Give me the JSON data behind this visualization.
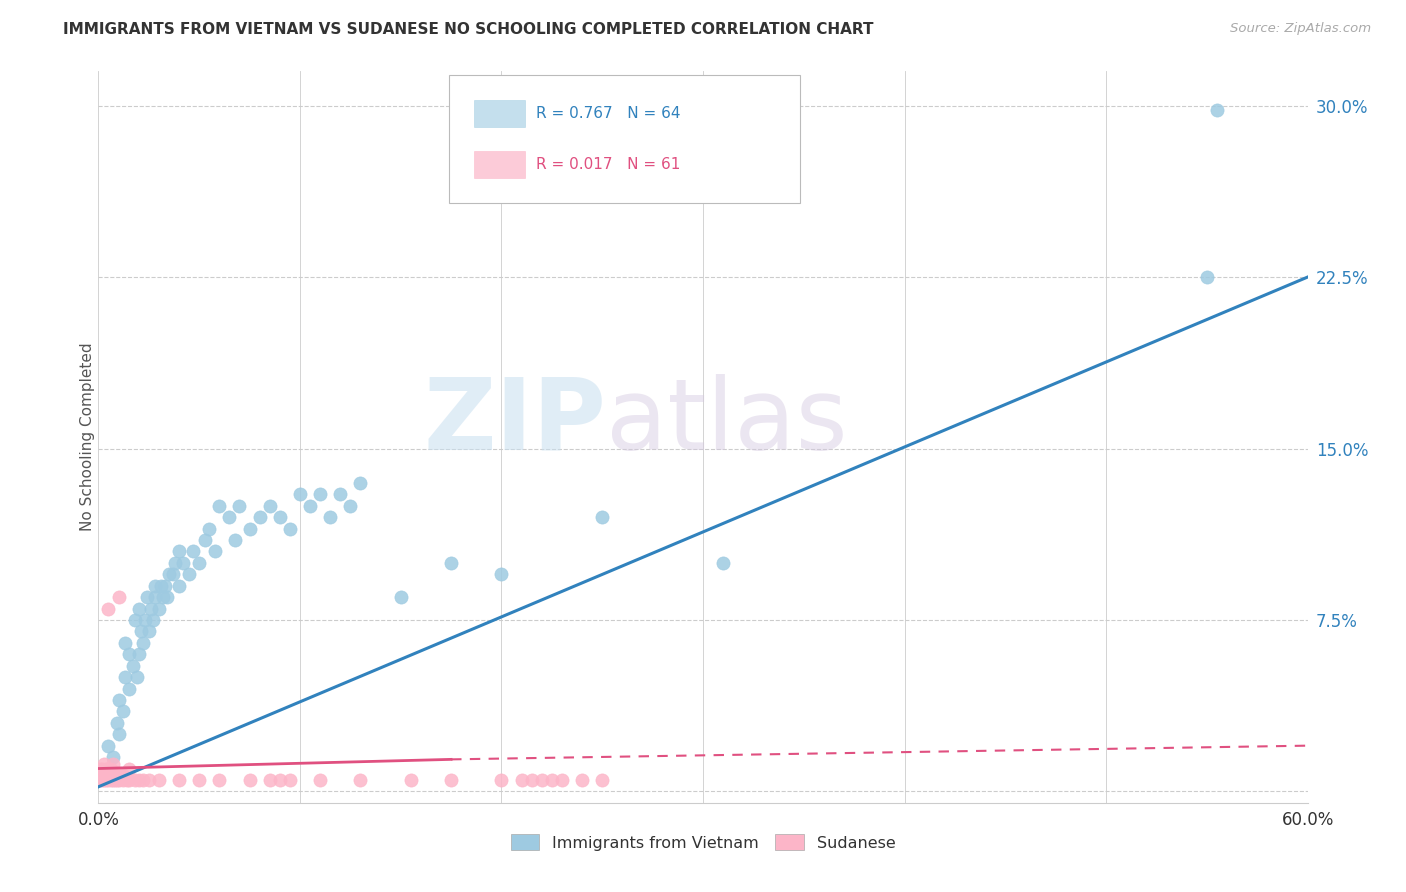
{
  "title": "IMMIGRANTS FROM VIETNAM VS SUDANESE NO SCHOOLING COMPLETED CORRELATION CHART",
  "source": "Source: ZipAtlas.com",
  "ylabel": "No Schooling Completed",
  "xlim": [
    0.0,
    0.6
  ],
  "ylim": [
    -0.005,
    0.315
  ],
  "xticks": [
    0.0,
    0.1,
    0.2,
    0.3,
    0.4,
    0.5,
    0.6
  ],
  "xticklabels": [
    "0.0%",
    "",
    "",
    "",
    "",
    "",
    "60.0%"
  ],
  "yticks": [
    0.0,
    0.075,
    0.15,
    0.225,
    0.3
  ],
  "yticklabels": [
    "",
    "7.5%",
    "15.0%",
    "22.5%",
    "30.0%"
  ],
  "grid_color": "#cccccc",
  "background_color": "#ffffff",
  "watermark_zip": "ZIP",
  "watermark_atlas": "atlas",
  "legend_R1": "R = 0.767",
  "legend_N1": "N = 64",
  "legend_R2": "R = 0.017",
  "legend_N2": "N = 61",
  "legend_label1": "Immigrants from Vietnam",
  "legend_label2": "Sudanese",
  "color_vietnam": "#9ecae1",
  "color_sudanese": "#fcb5c8",
  "line_color_vietnam": "#3182bd",
  "line_color_sudanese": "#e05080",
  "vietnam_x": [
    0.005,
    0.007,
    0.009,
    0.01,
    0.01,
    0.012,
    0.013,
    0.013,
    0.015,
    0.015,
    0.017,
    0.018,
    0.019,
    0.02,
    0.02,
    0.021,
    0.022,
    0.023,
    0.024,
    0.025,
    0.026,
    0.027,
    0.028,
    0.028,
    0.03,
    0.031,
    0.032,
    0.033,
    0.034,
    0.035,
    0.037,
    0.038,
    0.04,
    0.04,
    0.042,
    0.045,
    0.047,
    0.05,
    0.053,
    0.055,
    0.058,
    0.06,
    0.065,
    0.068,
    0.07,
    0.075,
    0.08,
    0.085,
    0.09,
    0.095,
    0.1,
    0.105,
    0.11,
    0.115,
    0.12,
    0.125,
    0.13,
    0.15,
    0.175,
    0.2,
    0.25,
    0.31,
    0.55,
    0.555
  ],
  "vietnam_y": [
    0.02,
    0.015,
    0.03,
    0.025,
    0.04,
    0.035,
    0.05,
    0.065,
    0.045,
    0.06,
    0.055,
    0.075,
    0.05,
    0.06,
    0.08,
    0.07,
    0.065,
    0.075,
    0.085,
    0.07,
    0.08,
    0.075,
    0.09,
    0.085,
    0.08,
    0.09,
    0.085,
    0.09,
    0.085,
    0.095,
    0.095,
    0.1,
    0.09,
    0.105,
    0.1,
    0.095,
    0.105,
    0.1,
    0.11,
    0.115,
    0.105,
    0.125,
    0.12,
    0.11,
    0.125,
    0.115,
    0.12,
    0.125,
    0.12,
    0.115,
    0.13,
    0.125,
    0.13,
    0.12,
    0.13,
    0.125,
    0.135,
    0.085,
    0.1,
    0.095,
    0.12,
    0.1,
    0.225,
    0.298
  ],
  "sudanese_x": [
    0.001,
    0.001,
    0.001,
    0.002,
    0.002,
    0.002,
    0.002,
    0.003,
    0.003,
    0.003,
    0.003,
    0.004,
    0.004,
    0.004,
    0.005,
    0.005,
    0.005,
    0.005,
    0.005,
    0.006,
    0.006,
    0.006,
    0.007,
    0.007,
    0.007,
    0.008,
    0.008,
    0.009,
    0.009,
    0.01,
    0.01,
    0.01,
    0.012,
    0.012,
    0.014,
    0.015,
    0.015,
    0.018,
    0.02,
    0.022,
    0.025,
    0.03,
    0.04,
    0.05,
    0.06,
    0.075,
    0.085,
    0.09,
    0.095,
    0.11,
    0.13,
    0.155,
    0.175,
    0.2,
    0.21,
    0.215,
    0.22,
    0.225,
    0.23,
    0.24,
    0.25
  ],
  "sudanese_y": [
    0.005,
    0.008,
    0.01,
    0.005,
    0.006,
    0.008,
    0.01,
    0.005,
    0.006,
    0.008,
    0.012,
    0.005,
    0.007,
    0.01,
    0.005,
    0.006,
    0.008,
    0.01,
    0.08,
    0.005,
    0.007,
    0.01,
    0.005,
    0.008,
    0.012,
    0.005,
    0.008,
    0.005,
    0.007,
    0.005,
    0.008,
    0.085,
    0.005,
    0.007,
    0.005,
    0.005,
    0.01,
    0.005,
    0.005,
    0.005,
    0.005,
    0.005,
    0.005,
    0.005,
    0.005,
    0.005,
    0.005,
    0.005,
    0.005,
    0.005,
    0.005,
    0.005,
    0.005,
    0.005,
    0.005,
    0.005,
    0.005,
    0.005,
    0.005,
    0.005,
    0.005
  ],
  "vietnam_trendline": [
    [
      0.0,
      0.6
    ],
    [
      0.002,
      0.225
    ]
  ],
  "sudanese_trendline_solid": [
    [
      0.0,
      0.175
    ],
    [
      0.01,
      0.014
    ]
  ],
  "sudanese_trendline_dashed": [
    [
      0.175,
      0.6
    ],
    [
      0.014,
      0.02
    ]
  ]
}
